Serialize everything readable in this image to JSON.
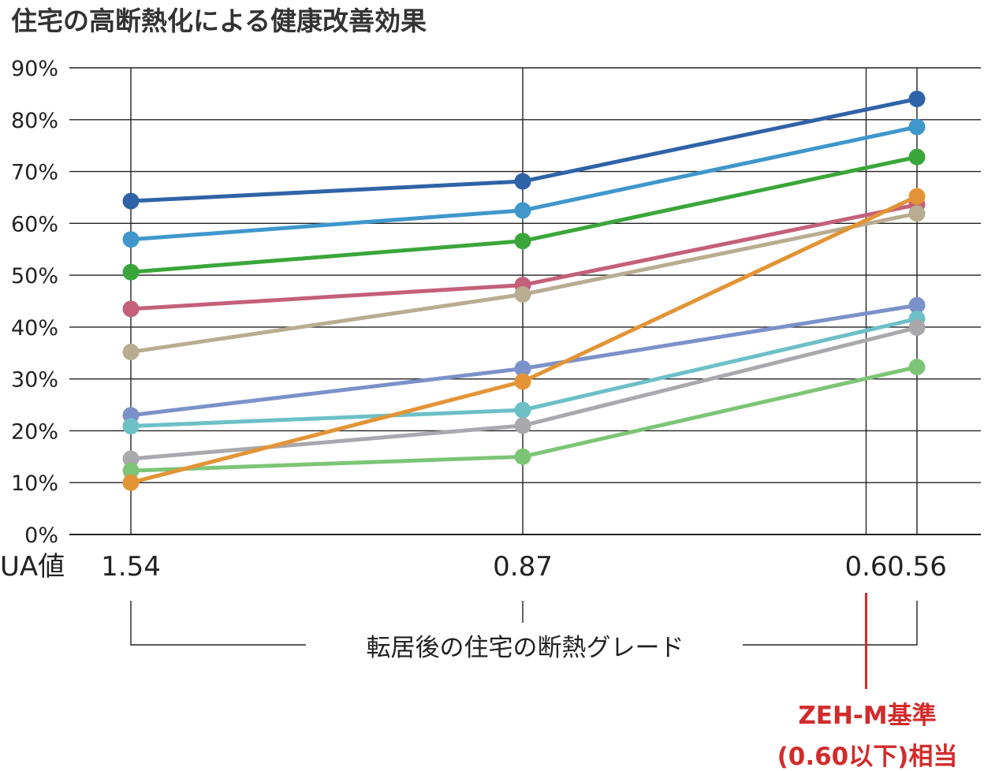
{
  "chart_data": {
    "type": "line",
    "title": "住宅の高断熱化による健康改善効果",
    "x_axis_name": "UA値",
    "x": [
      1.54,
      0.87,
      0.56
    ],
    "x_tick_labels": [
      "1.54",
      "0.87",
      "0.6",
      "0.56"
    ],
    "x_tick_values": [
      1.54,
      0.87,
      0.6,
      0.56
    ],
    "xlabel": "転居後の住宅の断熱グレード",
    "ylim": [
      0,
      90
    ],
    "y_ticks": [
      "0%",
      "10%",
      "20%",
      "30%",
      "40%",
      "50%",
      "60%",
      "70%",
      "80%",
      "90%"
    ],
    "grid": true,
    "reference_line": {
      "x": 0.6,
      "label_line1": "ZEH-M基準",
      "label_line2": "(0.60以下)相当",
      "color": "#d22b2b"
    },
    "series": [
      {
        "color": "#2f63a8",
        "values": [
          64.3,
          68.1,
          84.0
        ]
      },
      {
        "color": "#3f97cc",
        "values": [
          56.9,
          62.5,
          78.6
        ]
      },
      {
        "color": "#3aa63a",
        "values": [
          50.6,
          56.6,
          72.8
        ]
      },
      {
        "color": "#c4607a",
        "values": [
          43.5,
          48.1,
          63.6
        ]
      },
      {
        "color": "#b8ad90",
        "values": [
          35.2,
          46.3,
          61.9
        ]
      },
      {
        "color": "#7b91c9",
        "values": [
          23.0,
          32.0,
          44.2
        ]
      },
      {
        "color": "#6cc0c6",
        "values": [
          20.9,
          24.0,
          41.6
        ]
      },
      {
        "color": "#a8a8ad",
        "values": [
          14.6,
          21.0,
          39.9
        ]
      },
      {
        "color": "#7dc576",
        "values": [
          12.3,
          15.0,
          32.3
        ]
      },
      {
        "color": "#e39436",
        "values": [
          10.0,
          29.5,
          65.2
        ]
      }
    ]
  }
}
